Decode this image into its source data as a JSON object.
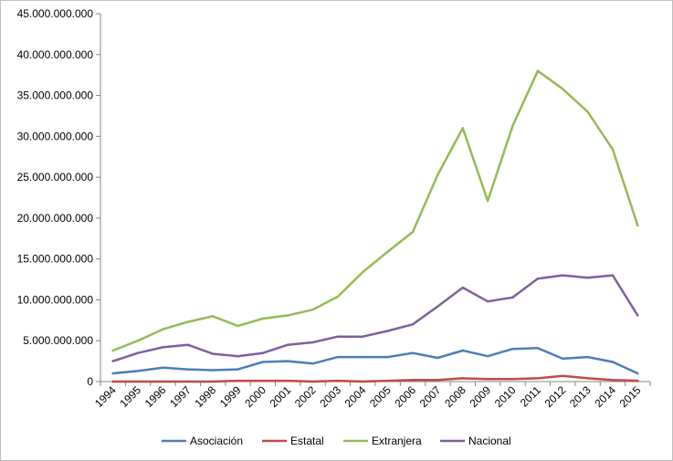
{
  "chart_data": {
    "type": "line",
    "title": "",
    "xlabel": "",
    "ylabel": "",
    "ylim": [
      0,
      45000000000
    ],
    "yticks": [
      0,
      5000000000,
      10000000000,
      15000000000,
      20000000000,
      25000000000,
      30000000000,
      35000000000,
      40000000000,
      45000000000
    ],
    "ytick_labels": [
      "0",
      "5.000.000.000",
      "10.000.000.000",
      "15.000.000.000",
      "20.000.000.000",
      "25.000.000.000",
      "30.000.000.000",
      "35.000.000.000",
      "40.000.000.000",
      "45.000.000.000"
    ],
    "categories": [
      "1994",
      "1995",
      "1996",
      "1997",
      "1998",
      "1999",
      "2000",
      "2001",
      "2002",
      "2003",
      "2004",
      "2005",
      "2006",
      "2007",
      "2008",
      "2009",
      "2010",
      "2011",
      "2012",
      "2013",
      "2014",
      "2015"
    ],
    "grid": false,
    "legend_position": "bottom",
    "series": [
      {
        "name": "Asociación",
        "color": "#4a7ebb",
        "values": [
          1000000000,
          1300000000,
          1700000000,
          1500000000,
          1400000000,
          1500000000,
          2400000000,
          2500000000,
          2200000000,
          3000000000,
          3000000000,
          3000000000,
          3500000000,
          2900000000,
          3800000000,
          3100000000,
          4000000000,
          4100000000,
          2800000000,
          3000000000,
          2400000000,
          1000000000
        ]
      },
      {
        "name": "Estatal",
        "color": "#be4b48",
        "values": [
          0,
          0,
          0,
          0,
          0,
          100000000,
          100000000,
          100000000,
          0,
          100000000,
          0,
          100000000,
          200000000,
          200000000,
          400000000,
          300000000,
          300000000,
          400000000,
          700000000,
          400000000,
          200000000,
          100000000
        ]
      },
      {
        "name": "Extranjera",
        "color": "#98b954",
        "values": [
          3800000000,
          5000000000,
          6400000000,
          7300000000,
          8000000000,
          6800000000,
          7700000000,
          8100000000,
          8800000000,
          10400000000,
          13400000000,
          15900000000,
          18300000000,
          25300000000,
          31000000000,
          22100000000,
          31300000000,
          38000000000,
          35800000000,
          33000000000,
          28400000000,
          19100000000
        ]
      },
      {
        "name": "Nacional",
        "color": "#7d60a0",
        "values": [
          2500000000,
          3500000000,
          4200000000,
          4500000000,
          3400000000,
          3100000000,
          3500000000,
          4500000000,
          4800000000,
          5500000000,
          5500000000,
          6200000000,
          7000000000,
          9200000000,
          11500000000,
          9800000000,
          10300000000,
          12600000000,
          13000000000,
          12700000000,
          13000000000,
          8100000000
        ]
      }
    ]
  }
}
